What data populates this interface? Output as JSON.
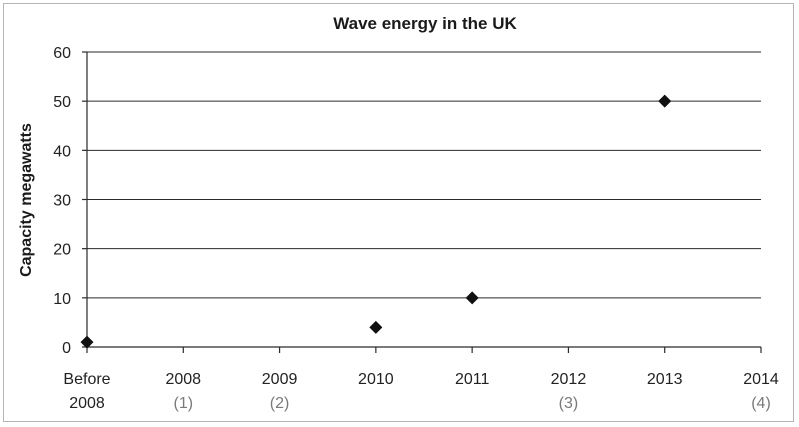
{
  "chart_data": {
    "type": "scatter",
    "title": "Wave energy in the UK",
    "xlabel": "",
    "ylabel": "Capacity megawatts",
    "ylim": [
      0,
      60
    ],
    "yticks": [
      "0",
      "10",
      "20",
      "30",
      "40",
      "50",
      "60"
    ],
    "categories": [
      {
        "label": "Before",
        "label2": "2008",
        "note": ""
      },
      {
        "label": "2008",
        "label2": "",
        "note": "(1)"
      },
      {
        "label": "2009",
        "label2": "",
        "note": "(2)"
      },
      {
        "label": "2010",
        "label2": "",
        "note": ""
      },
      {
        "label": "2011",
        "label2": "",
        "note": ""
      },
      {
        "label": "2012",
        "label2": "",
        "note": "(3)"
      },
      {
        "label": "2013",
        "label2": "",
        "note": ""
      },
      {
        "label": "2014",
        "label2": "",
        "note": "(4)"
      }
    ],
    "points": [
      {
        "category": "Before 2008",
        "value": 1
      },
      {
        "category": "2010",
        "value": 4
      },
      {
        "category": "2011",
        "value": 10
      },
      {
        "category": "2013",
        "value": 50
      }
    ],
    "grid": true,
    "marker": "diamond",
    "colors": {
      "marker": "#111111",
      "grid": "#2a2a2a",
      "frame": "#b5b5b5",
      "note": "#7a7a7a"
    }
  }
}
